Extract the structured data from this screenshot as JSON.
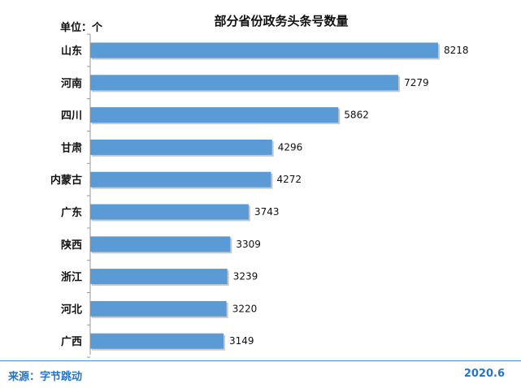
{
  "chart_data": {
    "type": "bar",
    "orientation": "horizontal",
    "title": "部分省份政务头条号数量",
    "unit_label": "单位：个",
    "categories": [
      "山东",
      "河南",
      "四川",
      "甘肃",
      "内蒙古",
      "广东",
      "陕西",
      "浙江",
      "河北",
      "广西"
    ],
    "values": [
      8218,
      7279,
      5862,
      4296,
      4272,
      3743,
      3309,
      3239,
      3220,
      3149
    ],
    "xlim": [
      0,
      8218
    ],
    "grid": false,
    "legend": "none",
    "bar_color": "#5b9bd5"
  },
  "footer": {
    "source": "来源：字节跳动",
    "date": "2020.6"
  }
}
